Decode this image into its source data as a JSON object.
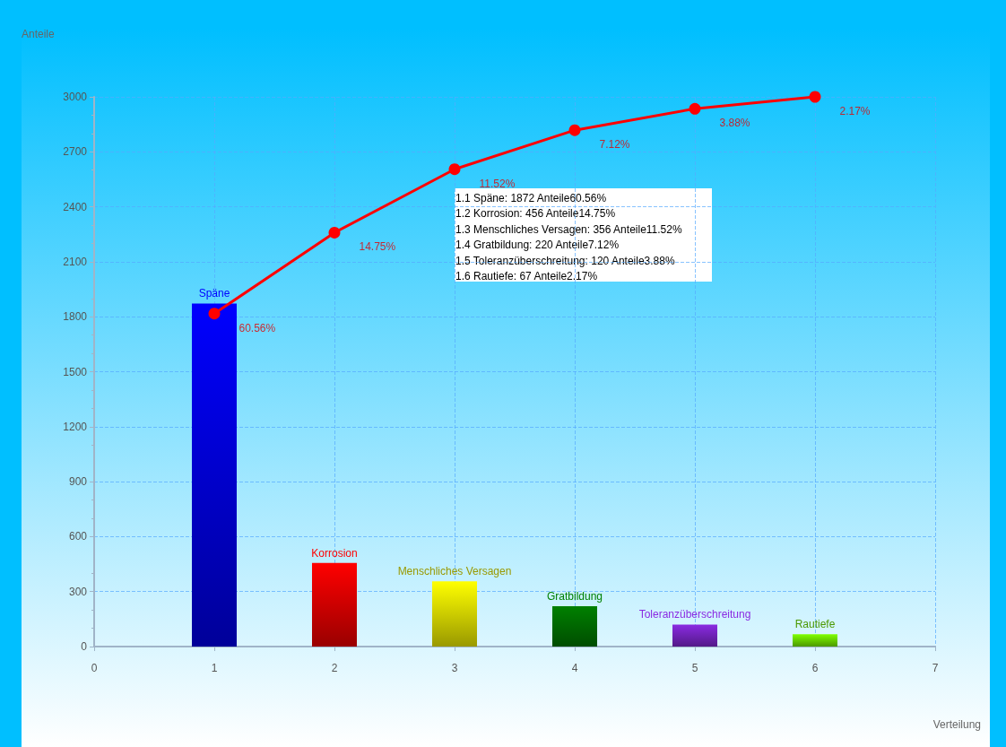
{
  "chart_data": {
    "type": "bar",
    "xlabel": "Verteilung",
    "ylabel": "Anteile",
    "xlim": [
      0,
      7
    ],
    "xticks": [
      0,
      1,
      2,
      3,
      4,
      5,
      6,
      7
    ],
    "ylim": [
      0,
      3000
    ],
    "yticks": [
      0,
      300,
      600,
      900,
      1200,
      1500,
      1800,
      2100,
      2400,
      2700,
      3000
    ],
    "grid": true,
    "series": [
      {
        "name": "Späne",
        "color": "#0000ff",
        "x": [
          1
        ],
        "values": [
          1872
        ]
      },
      {
        "name": "Korrosion",
        "color": "#ff0000",
        "x": [
          2
        ],
        "values": [
          456
        ]
      },
      {
        "name": "Menschliches Versagen",
        "color": "#ffff00",
        "x": [
          3
        ],
        "values": [
          356
        ]
      },
      {
        "name": "Gratbildung",
        "color": "#008000",
        "x": [
          4
        ],
        "values": [
          220
        ]
      },
      {
        "name": "Toleranzüberschreitung",
        "color": "#8a2be2",
        "x": [
          5
        ],
        "values": [
          120
        ]
      },
      {
        "name": "Rautiefe",
        "color": "#7fff00",
        "x": [
          6
        ],
        "values": [
          67
        ]
      },
      {
        "type": "line",
        "color": "#ff0000",
        "marker": "circle",
        "x": [
          1,
          2,
          3,
          4,
          5,
          6
        ],
        "values": [
          1817,
          2259,
          2605,
          2818,
          2935,
          3000
        ]
      }
    ],
    "annotations": [
      {
        "text": "60.56%",
        "x": 1,
        "y": 1817
      },
      {
        "text": "14.75%",
        "x": 2,
        "y": 2259
      },
      {
        "text": "11.52%",
        "x": 3,
        "y": 2605
      },
      {
        "text": "7.12%",
        "x": 4,
        "y": 2818
      },
      {
        "text": "3.88%",
        "x": 5,
        "y": 2935
      },
      {
        "text": "2.17%",
        "x": 6,
        "y": 3000
      },
      "1.1 Späne: 1872 Anteile60.56%",
      "1.2 Korrosion: 456 Anteile14.75%",
      "1.3 Menschliches Versagen: 356 Anteile11.52%",
      "1.4 Gratbildung: 220 Anteile7.12%",
      "1.5 Toleranzüberschreitung: 120 Anteile3.88%",
      "1.6 Rautiefe: 67 Anteile2.17%"
    ]
  }
}
